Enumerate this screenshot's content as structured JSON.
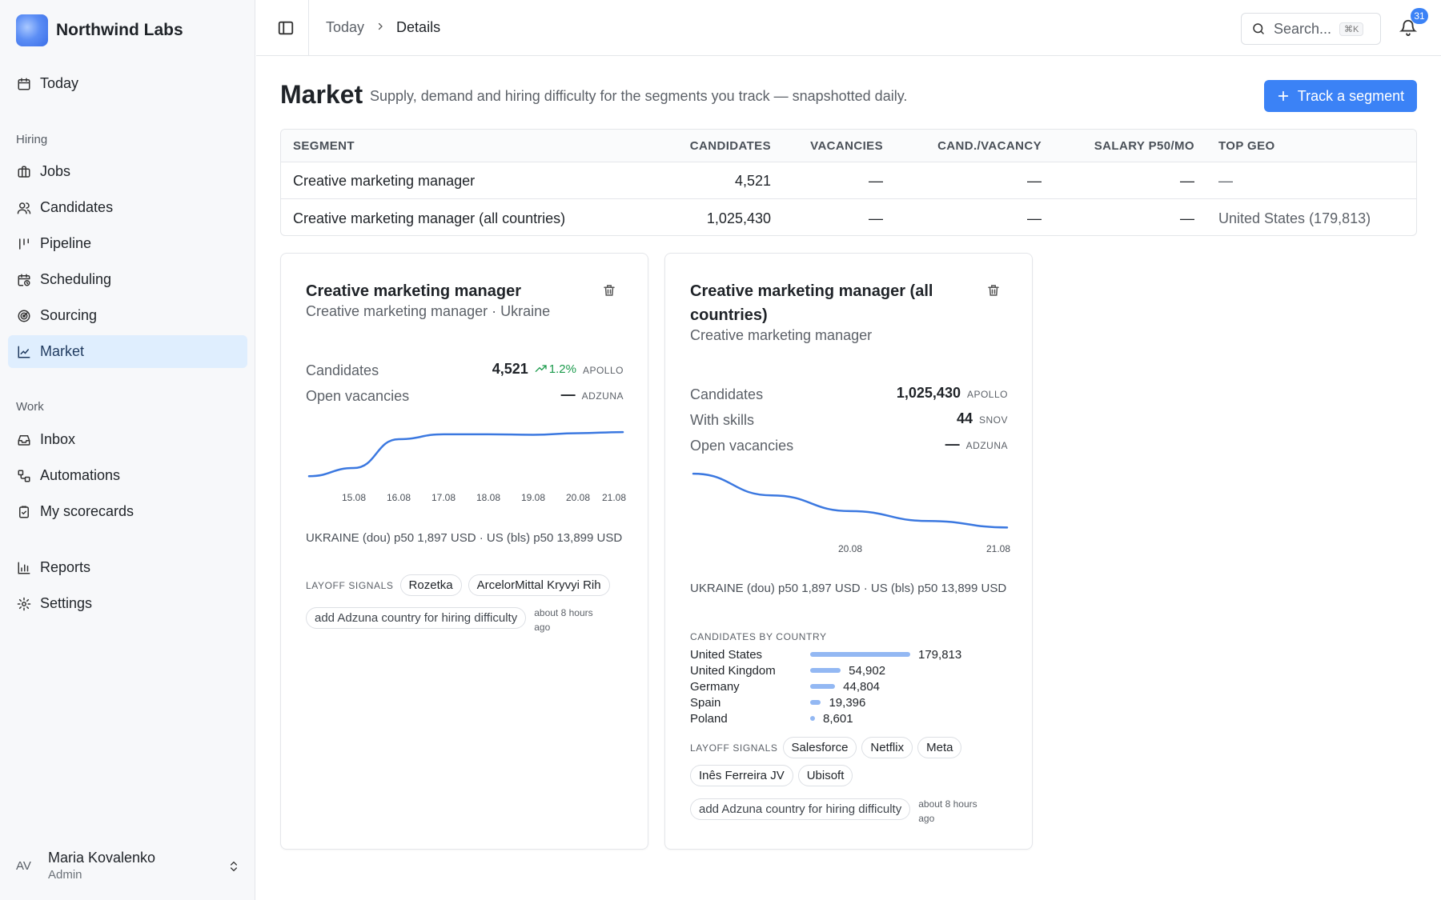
{
  "app": {
    "name": "Northwind Labs"
  },
  "sidebar": {
    "today": "Today",
    "section_hiring": "Hiring",
    "hiring_items": [
      "Jobs",
      "Candidates",
      "Pipeline",
      "Scheduling",
      "Sourcing",
      "Market"
    ],
    "section_work": "Work",
    "work_items": [
      "Inbox",
      "Automations",
      "My scorecards"
    ],
    "bottom_items": [
      "Reports",
      "Settings"
    ],
    "active_item": "Market",
    "user": {
      "initials": "AV",
      "name": "Maria Kovalenko",
      "role": "Admin"
    }
  },
  "header": {
    "breadcrumb": [
      "Today",
      "Details"
    ],
    "search_placeholder": "Search...",
    "search_shortcut": "⌘K",
    "notifications_count": "31"
  },
  "page": {
    "title": "Market",
    "subtitle": "Supply, demand and hiring difficulty for the segments you track — snapshotted daily.",
    "track_button": "Track a segment"
  },
  "table": {
    "headers": [
      "SEGMENT",
      "CANDIDATES",
      "VACANCIES",
      "CAND./VACANCY",
      "SALARY P50/MO",
      "TOP GEO"
    ],
    "rows": [
      [
        "Creative marketing manager",
        "4,521",
        "—",
        "—",
        "—",
        "—"
      ],
      [
        "Creative marketing manager (all countries)",
        "1,025,430",
        "—",
        "—",
        "—",
        "United States (179,813)"
      ]
    ]
  },
  "cards": [
    {
      "title": "Creative marketing manager",
      "subtitle": "Creative marketing manager · Ukraine",
      "metrics": [
        {
          "label": "Candidates",
          "value": "4,521",
          "trend": "1.2%",
          "source": "APOLLO"
        },
        {
          "label": "Open vacancies",
          "value": "—",
          "source": "ADZUNA"
        }
      ],
      "salary": "UKRAINE (dou) p50 1,897 USD · US (bls) p50 13,899 USD",
      "layoff_label": "LAYOFF SIGNALS",
      "layoffs": [
        "Rozetka",
        "ArcelorMittal Kryvyi Rih"
      ],
      "action": "add Adzuna country for hiring difficulty",
      "ago": "about 8 hours ago"
    },
    {
      "title": "Creative marketing manager (all countries)",
      "subtitle": "Creative marketing manager",
      "metrics": [
        {
          "label": "Candidates",
          "value": "1,025,430",
          "source": "APOLLO"
        },
        {
          "label": "With skills",
          "value": "44",
          "source": "SNOV"
        },
        {
          "label": "Open vacancies",
          "value": "—",
          "source": "ADZUNA"
        }
      ],
      "salary": "UKRAINE (dou) p50 1,897 USD · US (bls) p50 13,899 USD",
      "countries_label": "CANDIDATES BY COUNTRY",
      "countries": [
        {
          "name": "United States",
          "value": "179,813",
          "count": 179813
        },
        {
          "name": "United Kingdom",
          "value": "54,902",
          "count": 54902
        },
        {
          "name": "Germany",
          "value": "44,804",
          "count": 44804
        },
        {
          "name": "Spain",
          "value": "19,396",
          "count": 19396
        },
        {
          "name": "Poland",
          "value": "8,601",
          "count": 8601
        }
      ],
      "layoff_label": "LAYOFF SIGNALS",
      "layoffs": [
        "Salesforce",
        "Netflix",
        "Meta",
        "Inês Ferreira JV",
        "Ubisoft"
      ],
      "action": "add Adzuna country for hiring difficulty",
      "ago": "about 8 hours ago"
    }
  ],
  "chart_data": [
    {
      "type": "line",
      "x": [
        "14.08",
        "15.08",
        "16.08",
        "17.08",
        "18.08",
        "19.08",
        "20.08",
        "21.08"
      ],
      "x_tick_labels": [
        "15.08",
        "16.08",
        "17.08",
        "18.08",
        "19.08",
        "20.08",
        "21.08"
      ],
      "series": [
        {
          "values": [
            4440,
            4455,
            4508,
            4517,
            4517,
            4516,
            4519,
            4521
          ]
        }
      ],
      "ylim": [
        4430,
        4530
      ],
      "grid": false
    },
    {
      "type": "line",
      "x": [
        "19.08",
        "19.5",
        "20.08",
        "20.5",
        "21.08"
      ],
      "x_tick_labels": [
        "20.08",
        "21.08"
      ],
      "series": [
        {
          "values": [
            1080000,
            1058000,
            1042000,
            1032000,
            1025430
          ]
        }
      ],
      "ylim": [
        1020000,
        1085000
      ],
      "grid": false
    }
  ]
}
